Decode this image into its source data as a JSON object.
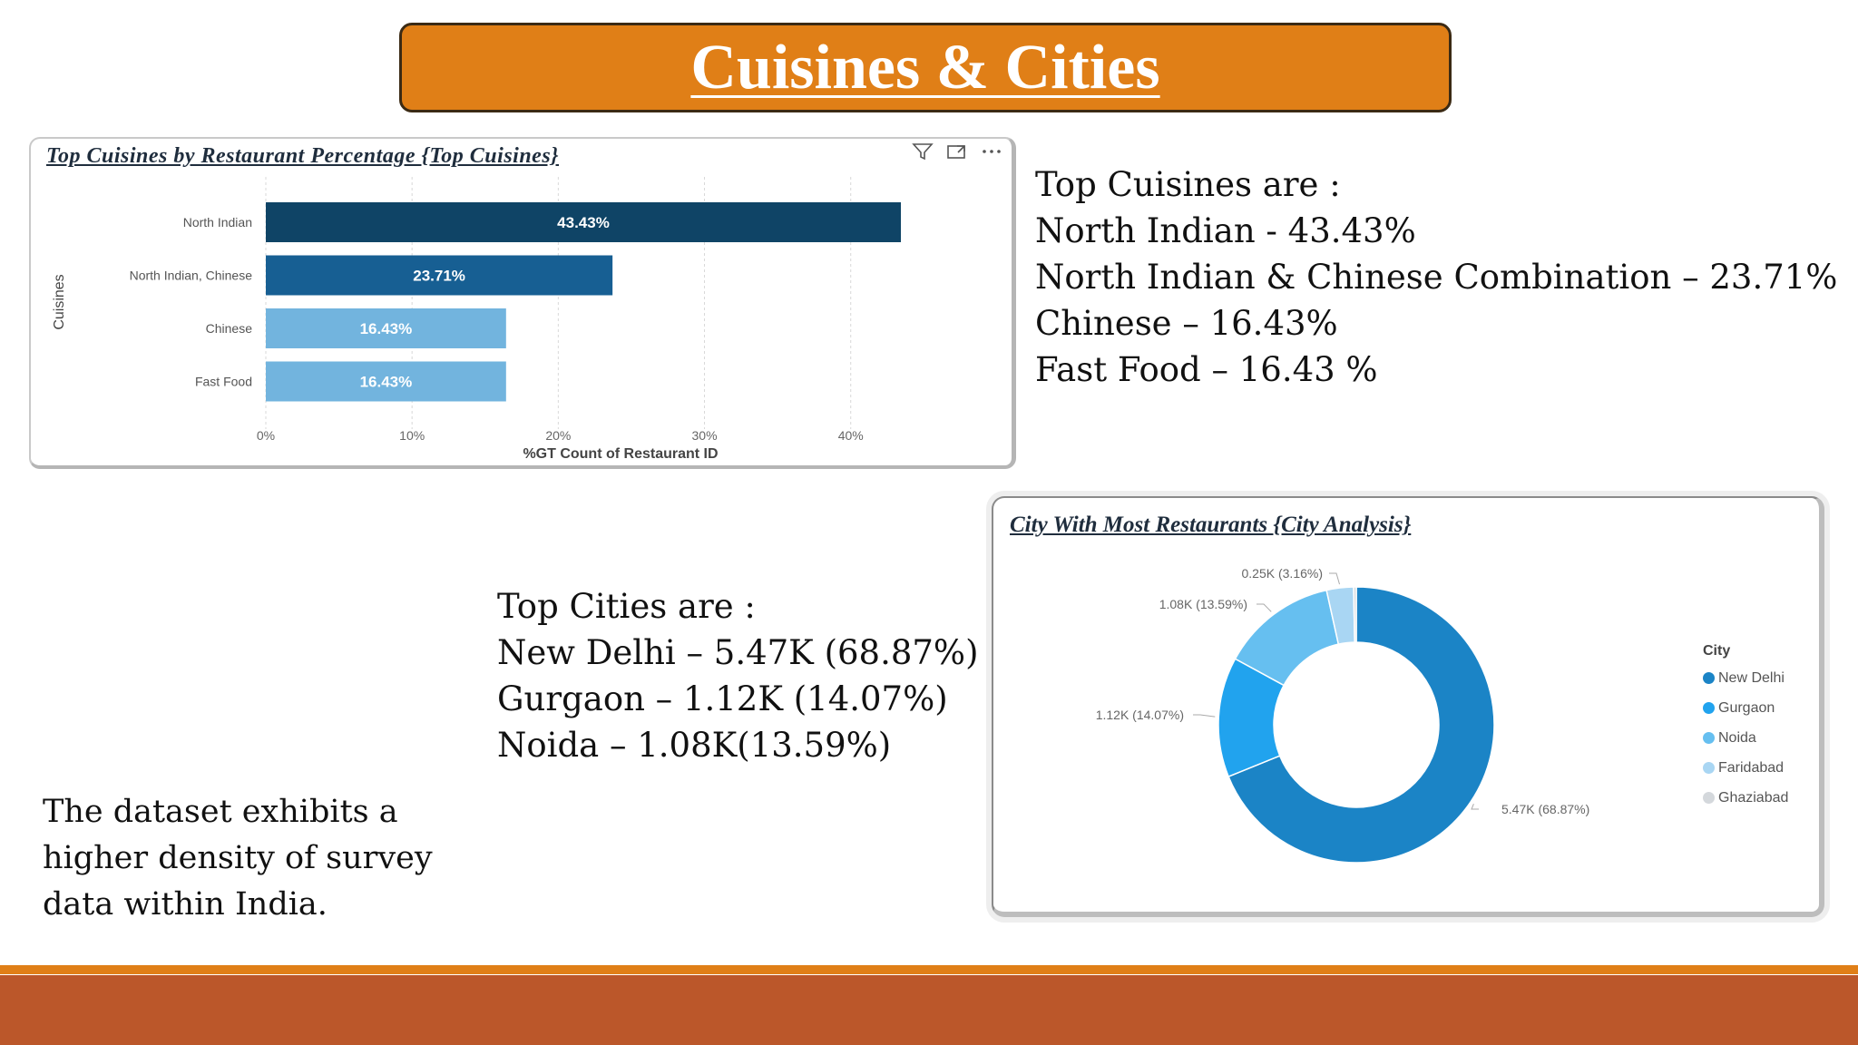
{
  "page": {
    "title": "Cuisines & Cities",
    "cuisine_summary": [
      "Top Cuisines are :",
      "North Indian - 43.43%",
      "North Indian & Chinese Combination – 23.71%",
      "Chinese – 16.43%",
      "Fast Food – 16.43 %"
    ],
    "city_summary": [
      "Top Cities are :",
      "New Delhi – 5.47K (68.87%)",
      "Gurgaon – 1.12K (14.07%)",
      "Noida – 1.08K(13.59%)"
    ],
    "note": "The dataset exhibits a higher density of survey data within India."
  },
  "colors": {
    "banner": "#e07f17",
    "footer": "#bb572a",
    "bar_dark": "#0f4466",
    "bar_mid": "#175f93",
    "bar_light": "#72b4de"
  },
  "icons": [
    "filter-icon",
    "focus-mode-icon",
    "more-options-icon"
  ],
  "chart_data": [
    {
      "type": "bar",
      "orientation": "horizontal",
      "title": "Top Cuisines by Restaurant Percentage {Top Cuisines}",
      "xlabel": "%GT Count of Restaurant ID",
      "ylabel": "Cuisines",
      "categories": [
        "North Indian",
        "North Indian, Chinese",
        "Chinese",
        "Fast Food"
      ],
      "values": [
        43.43,
        23.71,
        16.43,
        16.43
      ],
      "data_labels": [
        "43.43%",
        "23.71%",
        "16.43%",
        "16.43%"
      ],
      "bar_colors": [
        "#0f4466",
        "#175f93",
        "#72b4de",
        "#72b4de"
      ],
      "xlim": [
        0,
        43.43
      ],
      "x_ticks": [
        0,
        10,
        20,
        30,
        40
      ],
      "x_tick_labels": [
        "0%",
        "10%",
        "20%",
        "30%",
        "40%"
      ],
      "grid": true
    },
    {
      "type": "pie",
      "variant": "donut",
      "title": "City With Most Restaurants {City Analysis}",
      "legend_title": "City",
      "legend_position": "right",
      "categories": [
        "New Delhi",
        "Gurgaon",
        "Noida",
        "Faridabad",
        "Ghaziabad"
      ],
      "values": [
        68.87,
        14.07,
        13.59,
        3.16,
        0.31
      ],
      "data_labels": [
        "5.47K (68.87%)",
        "1.12K (14.07%)",
        "1.08K (13.59%)",
        "0.25K (3.16%)",
        ""
      ],
      "colors": [
        "#1b84c6",
        "#21a3ee",
        "#66bff0",
        "#a9d6f3",
        "#d4d8dc"
      ]
    }
  ]
}
